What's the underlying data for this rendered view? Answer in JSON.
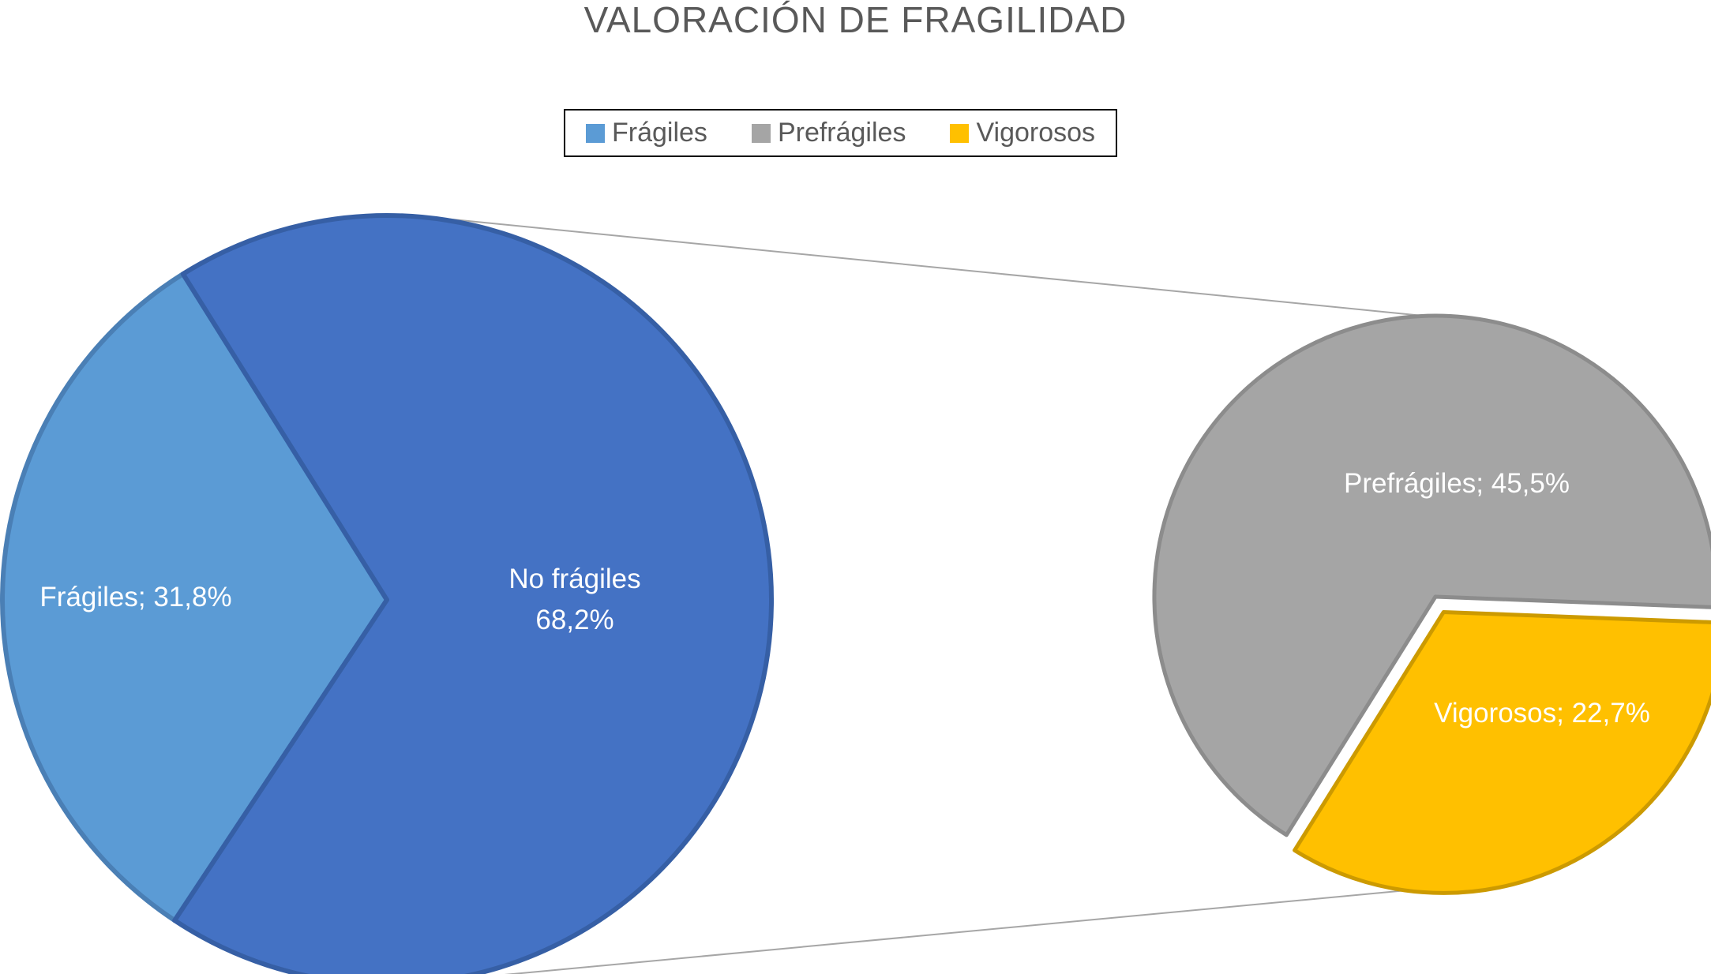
{
  "title": "VALORACIÓN DE FRAGILIDAD",
  "legend": {
    "items": [
      {
        "label": "Frágiles",
        "color": "#5b9bd5"
      },
      {
        "label": "Prefrágiles",
        "color": "#a5a5a5"
      },
      {
        "label": "Vigorosos",
        "color": "#ffc000"
      }
    ]
  },
  "chart_data": {
    "type": "pie",
    "subtype": "pie-of-pie",
    "title": "VALORACIÓN DE FRAGILIDAD",
    "legend_position": "top",
    "values_are": "percent",
    "label_color": "#ffffff",
    "primary": {
      "slices": [
        {
          "name": "Frágiles",
          "value": 31.8,
          "color": "#5b9bd5",
          "border": "#4a7fb5",
          "label_lines": [
            "Frágiles; 31,8%"
          ]
        },
        {
          "name": "No frágiles",
          "value": 68.2,
          "color": "#4472c4",
          "border": "#365fa5",
          "label_lines": [
            "No frágiles",
            "68,2%"
          ]
        }
      ]
    },
    "secondary": {
      "breakdown_of": "No frágiles",
      "slices": [
        {
          "name": "Prefrágiles",
          "value": 45.5,
          "color": "#a5a5a5",
          "border": "#8c8c8c",
          "label_lines": [
            "Prefrágiles; 45,5%"
          ]
        },
        {
          "name": "Vigorosos",
          "value": 22.7,
          "color": "#ffc000",
          "border": "#cc9a00",
          "label_lines": [
            "Vigorosos; 22,7%"
          ],
          "exploded": true
        }
      ]
    }
  }
}
